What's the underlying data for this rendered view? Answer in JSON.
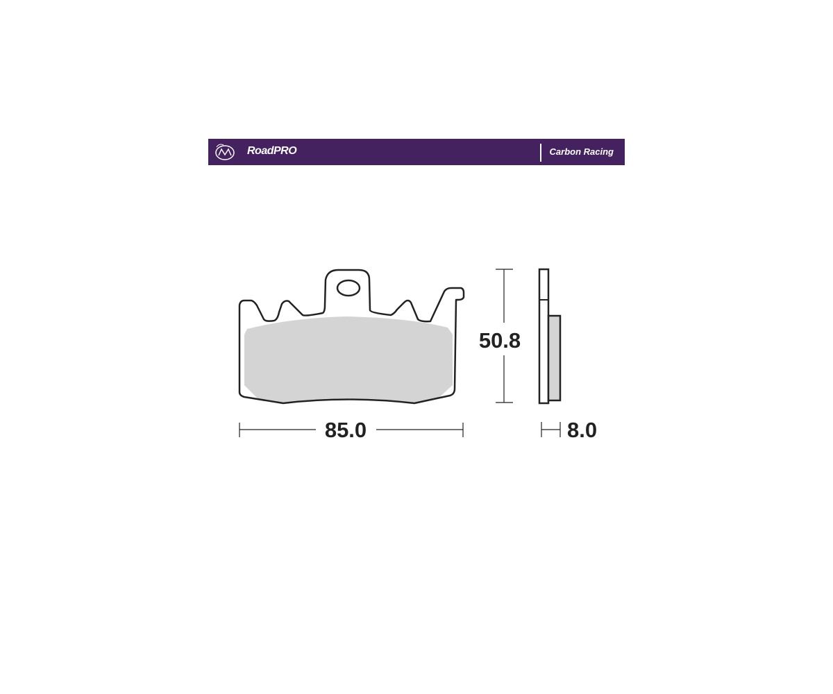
{
  "header": {
    "brand": "RoadPRO",
    "product_line": "Carbon Racing",
    "logo_icon": "motomaster-logo-icon",
    "background_color": "#44215f"
  },
  "dimensions": {
    "width": "85.0",
    "height": "50.8",
    "thickness": "8.0"
  },
  "colors": {
    "friction_material": "#d4d4d4",
    "outline": "#222222"
  }
}
